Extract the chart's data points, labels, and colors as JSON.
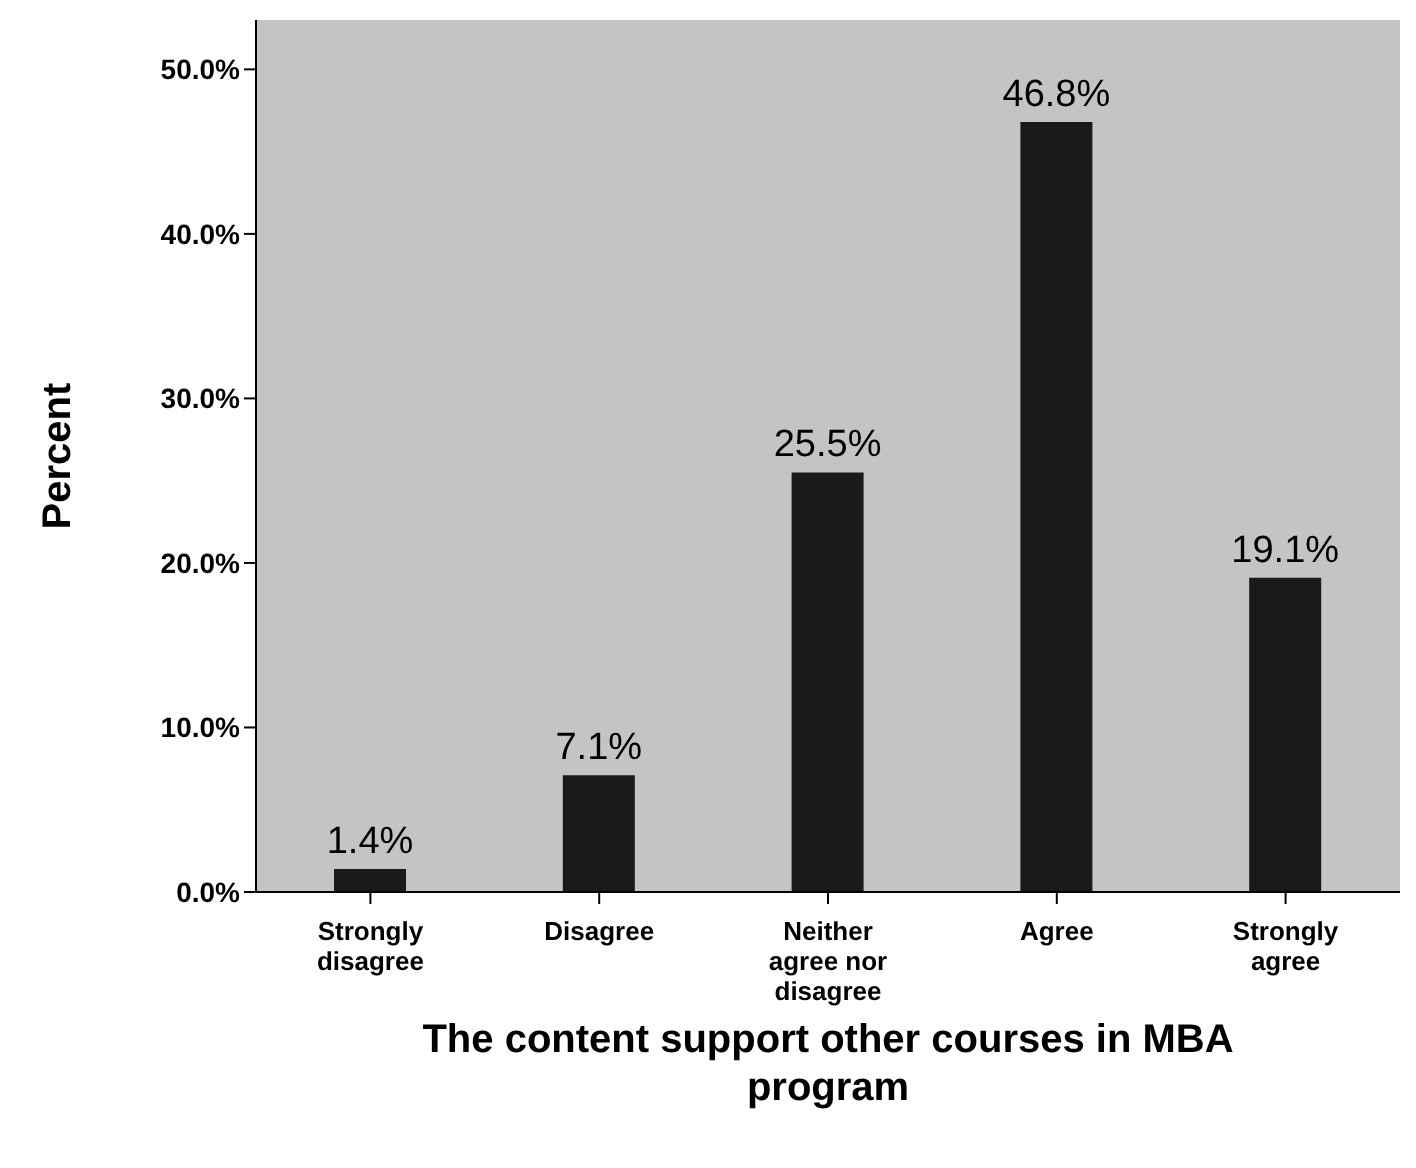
{
  "chart_data": {
    "type": "bar",
    "xlabel": "The content support other courses in MBA program",
    "ylabel": "Percent",
    "categories": [
      "Strongly disagree",
      "Disagree",
      "Neither agree nor disagree",
      "Agree",
      "Strongly agree"
    ],
    "values": [
      1.4,
      7.1,
      25.5,
      46.8,
      19.1
    ],
    "value_labels": [
      "1.4%",
      "7.1%",
      "25.5%",
      "46.8%",
      "19.1%"
    ],
    "color": "#1a1a1a",
    "ylim": [
      0,
      53
    ],
    "yticks": [
      {
        "value": 0,
        "label": "0.0%"
      },
      {
        "value": 10,
        "label": "10.0%"
      },
      {
        "value": 20,
        "label": "20.0%"
      },
      {
        "value": 30,
        "label": "30.0%"
      },
      {
        "value": 40,
        "label": "40.0%"
      },
      {
        "value": 50,
        "label": "50.0%"
      }
    ],
    "grid": false
  }
}
